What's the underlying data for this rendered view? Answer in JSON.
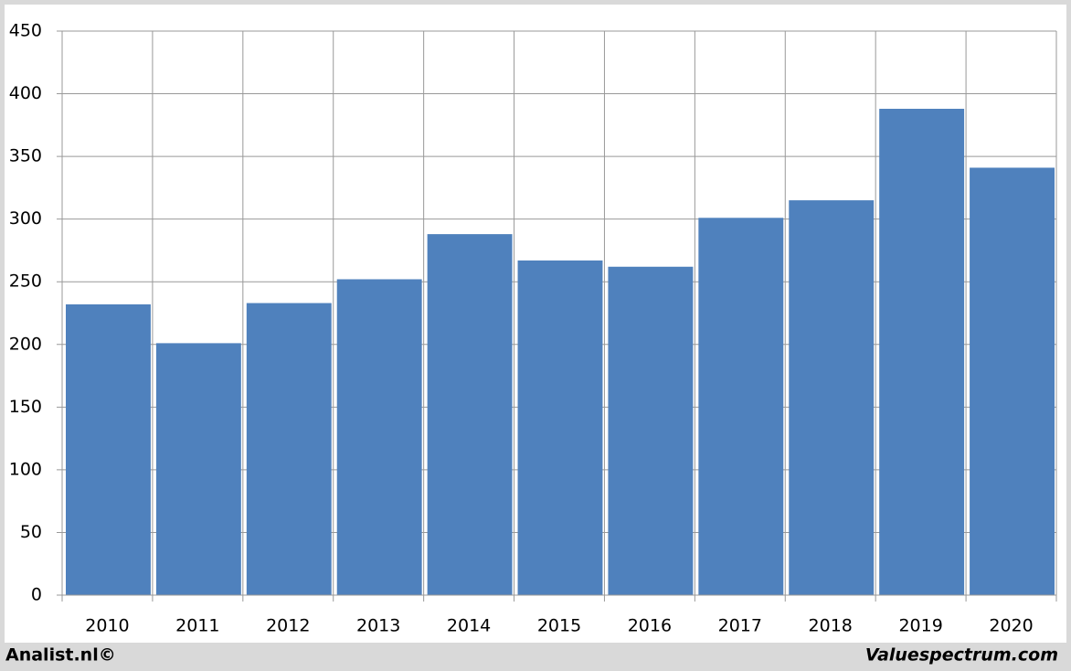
{
  "chart_data": {
    "type": "bar",
    "categories": [
      "2010",
      "2011",
      "2012",
      "2013",
      "2014",
      "2015",
      "2016",
      "2017",
      "2018",
      "2019",
      "2020"
    ],
    "values": [
      232,
      201,
      233,
      252,
      288,
      267,
      262,
      301,
      315,
      388,
      341
    ],
    "color": "#4f81bd",
    "ylim": [
      0,
      450
    ],
    "yticks": [
      0,
      50,
      100,
      150,
      200,
      250,
      300,
      350,
      400,
      450
    ],
    "grid": true,
    "annotations": [
      "Analist.nl©",
      "Valuespectrum.com"
    ]
  }
}
